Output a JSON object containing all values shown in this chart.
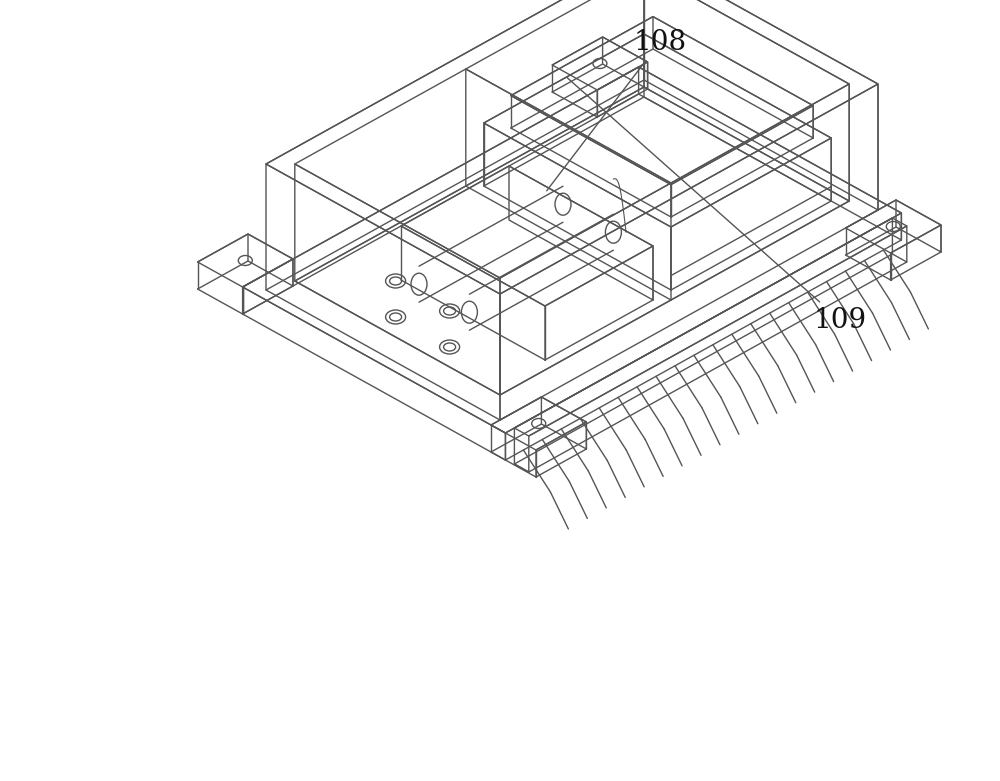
{
  "background_color": "#ffffff",
  "figure_width": 10.0,
  "figure_height": 7.81,
  "dpi": 100,
  "label_108": "108",
  "label_109": "109",
  "line_color": "#555555",
  "line_width": 1.0,
  "font_size": 20
}
